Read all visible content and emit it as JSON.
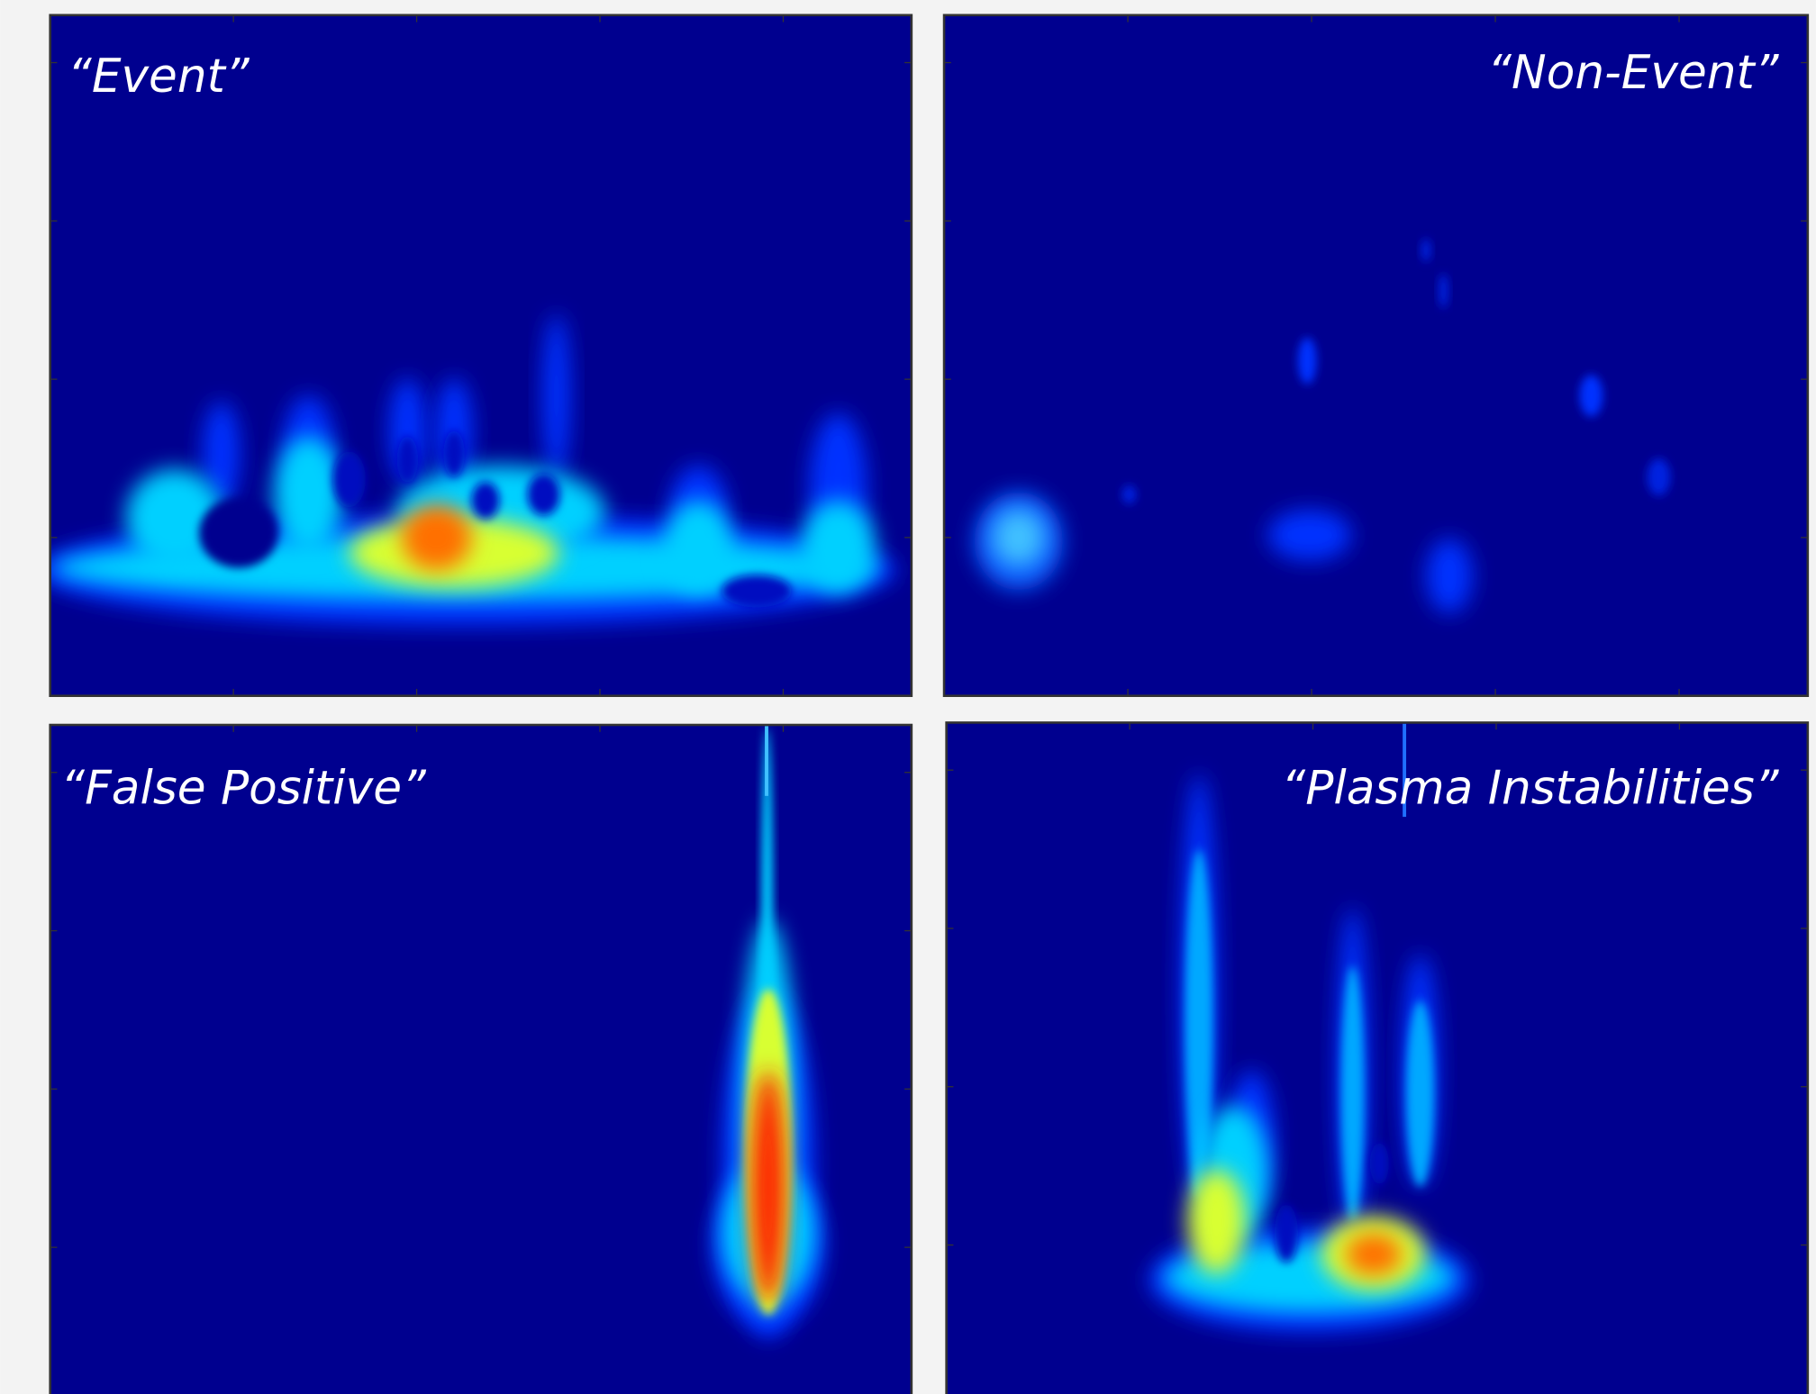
{
  "panels": [
    {
      "label": "“Event”"
    },
    {
      "label": "“Non-Event”"
    },
    {
      "label": "“False Positive”"
    },
    {
      "label": "“Plasma Instabilities”"
    }
  ]
}
